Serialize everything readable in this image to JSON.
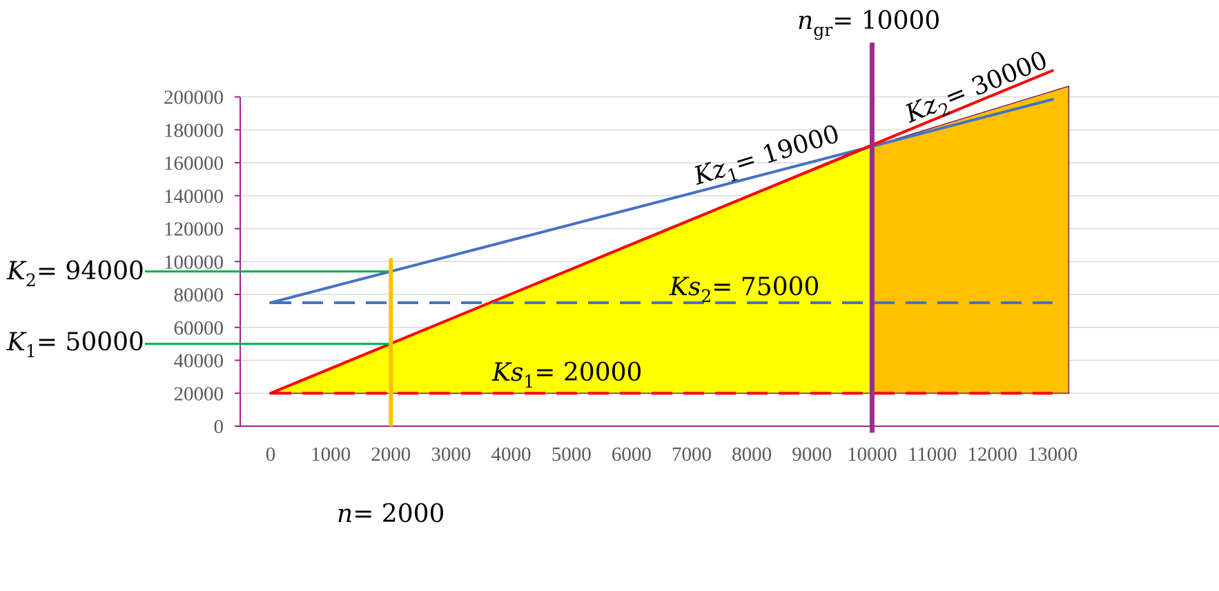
{
  "chart_data": {
    "type": "line",
    "x": [
      0,
      13000
    ],
    "ylim": [
      0,
      200000
    ],
    "xticks": [
      0,
      1000,
      2000,
      3000,
      4000,
      5000,
      6000,
      7000,
      8000,
      9000,
      10000,
      11000,
      12000,
      13000
    ],
    "yticks": [
      0,
      20000,
      40000,
      60000,
      80000,
      100000,
      120000,
      140000,
      160000,
      180000,
      200000
    ],
    "grid": true,
    "series": [
      {
        "label": "Kz1 line",
        "color": "#4472c4",
        "style": "solid",
        "points": [
          [
            0,
            75000
          ],
          [
            13000,
            198500
          ]
        ]
      },
      {
        "label": "Kz2 line",
        "color": "#ff0000",
        "style": "solid",
        "points": [
          [
            0,
            20000
          ],
          [
            13000,
            216000
          ]
        ]
      },
      {
        "label": "Ks2 line",
        "color": "#4472c4",
        "style": "dashed",
        "points": [
          [
            0,
            75000
          ],
          [
            13000,
            75000
          ]
        ]
      },
      {
        "label": "Ks1 line",
        "color": "#ff0000",
        "style": "dashed",
        "points": [
          [
            0,
            20000
          ],
          [
            13000,
            20000
          ]
        ]
      }
    ],
    "areas": [
      {
        "color": "#ffff00",
        "points": [
          [
            0,
            20000
          ],
          [
            10000,
            170000
          ],
          [
            10000,
            20000
          ]
        ]
      },
      {
        "color": "#ffc000",
        "points": [
          [
            10000,
            20000
          ],
          [
            10000,
            170000
          ],
          [
            13270,
            206500
          ],
          [
            13270,
            20000
          ]
        ]
      }
    ],
    "vlines": [
      {
        "x": 2000,
        "color": "#ffc000",
        "from": 0,
        "to": 102000
      },
      {
        "x": 10000,
        "color": "#9b2d8f",
        "from": -4000,
        "to": 233000
      }
    ],
    "hlines": [
      {
        "y": 94000,
        "color": "#00b050",
        "to_x": 2000
      },
      {
        "y": 50000,
        "color": "#00b050",
        "to_x": 2000
      }
    ],
    "annotations": {
      "n_gr": {
        "base": "n",
        "sub": "gr",
        "text": "=  10000"
      },
      "Kz1": {
        "base": "Kz",
        "sub": "1",
        "text": "=  19000"
      },
      "Kz2": {
        "base": "Kz",
        "sub": "2",
        "text": "=  30000"
      },
      "Ks2": {
        "base": "Ks",
        "sub": "2",
        "text": "=  75000"
      },
      "Ks1": {
        "base": "Ks",
        "sub": "1",
        "text": "=  20000"
      },
      "K2": {
        "base": "K",
        "sub": "2",
        "text": "=  94000"
      },
      "K1": {
        "base": "K",
        "sub": "1",
        "text": "=  50000"
      },
      "n": {
        "base": "n",
        "sub": "",
        "text": "=  2000"
      }
    },
    "colors": {
      "axis": "#a0238c",
      "grid": "#d9d9d9",
      "tick_text": "#595959"
    }
  }
}
